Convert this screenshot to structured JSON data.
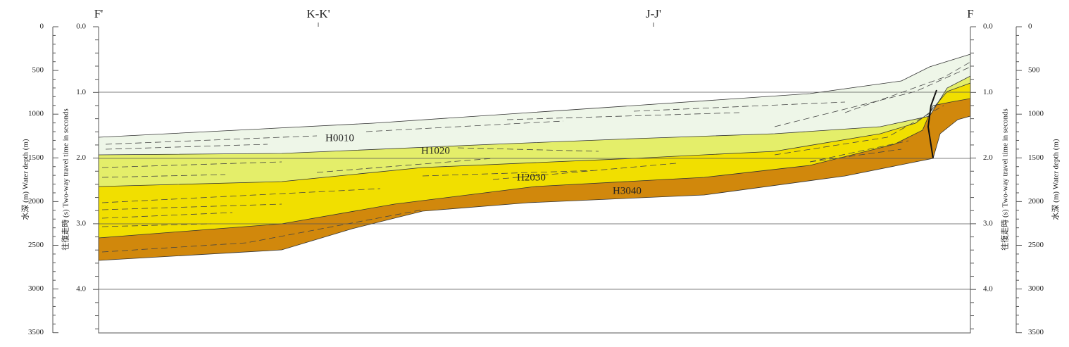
{
  "profile": {
    "left_end": "F'",
    "right_end": "F",
    "crossings": [
      "K-K'",
      "J-J'"
    ]
  },
  "depth_axis": {
    "title": "水深 (m)  Water depth (m)",
    "labels": [
      "0",
      "500",
      "1000",
      "1500",
      "2000",
      "2500",
      "3000",
      "3500"
    ]
  },
  "time_axis": {
    "title": "往復走時 (s)  Two-way travel time in seconds",
    "labels": [
      "0.0",
      "1.0",
      "2.0",
      "3.0",
      "4.0"
    ]
  },
  "horizons": [
    "H0010",
    "H1020",
    "H2030",
    "H3040"
  ]
}
